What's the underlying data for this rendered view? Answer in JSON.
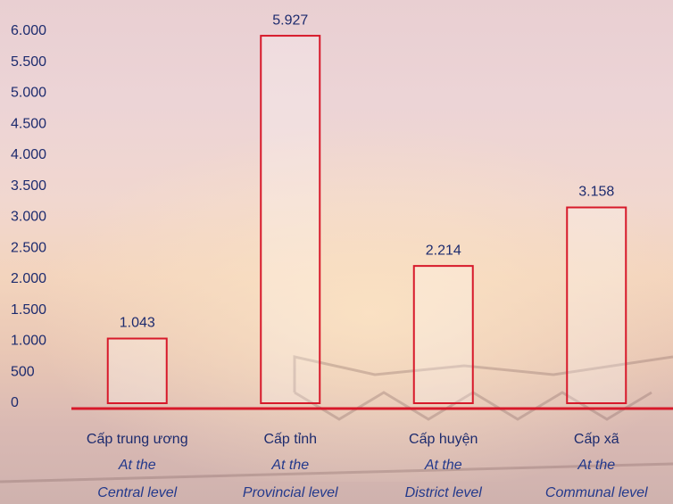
{
  "chart_data": {
    "type": "bar",
    "categories": [
      "Cấp trung ương",
      "Cấp tỉnh",
      "Cấp huyện",
      "Cấp xã"
    ],
    "category_subtitles": [
      [
        "At the",
        "Central level"
      ],
      [
        "At the",
        "Provincial level"
      ],
      [
        "At the",
        "District level"
      ],
      [
        "At the",
        "Communal level"
      ]
    ],
    "values": [
      1043,
      5927,
      2214,
      3158
    ],
    "value_labels": [
      "1.043",
      "5.927",
      "2.214",
      "3.158"
    ],
    "color": "#d7192a",
    "ylim": [
      0,
      6000
    ],
    "yticks": [
      {
        "value": 0,
        "label": "0"
      },
      {
        "value": 500,
        "label": "500"
      },
      {
        "value": 1000,
        "label": "1.000"
      },
      {
        "value": 1500,
        "label": "1.500"
      },
      {
        "value": 2000,
        "label": "2.000"
      },
      {
        "value": 2500,
        "label": "2.500"
      },
      {
        "value": 3000,
        "label": "3.000"
      },
      {
        "value": 3500,
        "label": "3.500"
      },
      {
        "value": 4000,
        "label": "4.000"
      },
      {
        "value": 4500,
        "label": "4.500"
      },
      {
        "value": 5000,
        "label": "5.000"
      },
      {
        "value": 5500,
        "label": "5.500"
      },
      {
        "value": 6000,
        "label": "6.000"
      }
    ],
    "grid": false
  }
}
